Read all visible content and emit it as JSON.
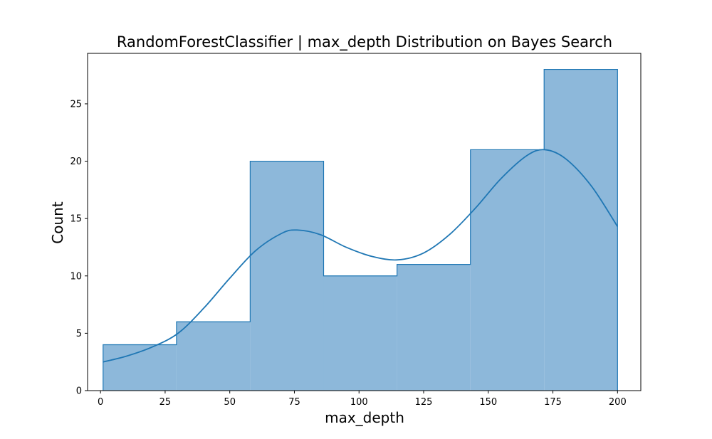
{
  "chart_data": {
    "type": "bar",
    "title": "RandomForestClassifier | max_depth Distribution on Bayes Search",
    "xlabel": "max_depth",
    "ylabel": "Count",
    "xlim": [
      -5,
      209
    ],
    "ylim": [
      0,
      29.4
    ],
    "xticks": [
      0,
      25,
      50,
      75,
      100,
      125,
      150,
      175,
      200
    ],
    "yticks": [
      0,
      5,
      10,
      15,
      20,
      25
    ],
    "bins": [
      {
        "start": 1,
        "end": 29.4,
        "count": 4
      },
      {
        "start": 29.4,
        "end": 57.9,
        "count": 6
      },
      {
        "start": 57.9,
        "end": 86.3,
        "count": 20
      },
      {
        "start": 86.3,
        "end": 114.7,
        "count": 10
      },
      {
        "start": 114.7,
        "end": 143.1,
        "count": 11
      },
      {
        "start": 143.1,
        "end": 171.6,
        "count": 21
      },
      {
        "start": 171.6,
        "end": 200,
        "count": 28
      }
    ],
    "kde": {
      "x": [
        1,
        10,
        20,
        30,
        40,
        50,
        60,
        70,
        76,
        85,
        95,
        105,
        115,
        125,
        135,
        145,
        155,
        165,
        172,
        180,
        190,
        200
      ],
      "y": [
        2.5,
        3.0,
        3.8,
        5.0,
        7.2,
        9.8,
        12.2,
        13.7,
        14.0,
        13.6,
        12.5,
        11.7,
        11.4,
        12.0,
        13.6,
        15.9,
        18.5,
        20.5,
        21.0,
        20.2,
        17.8,
        14.3
      ]
    },
    "bar_fill": "#8db8da",
    "bar_edge": "#1f77b4",
    "line_color": "#1f77b4",
    "grid": false
  }
}
